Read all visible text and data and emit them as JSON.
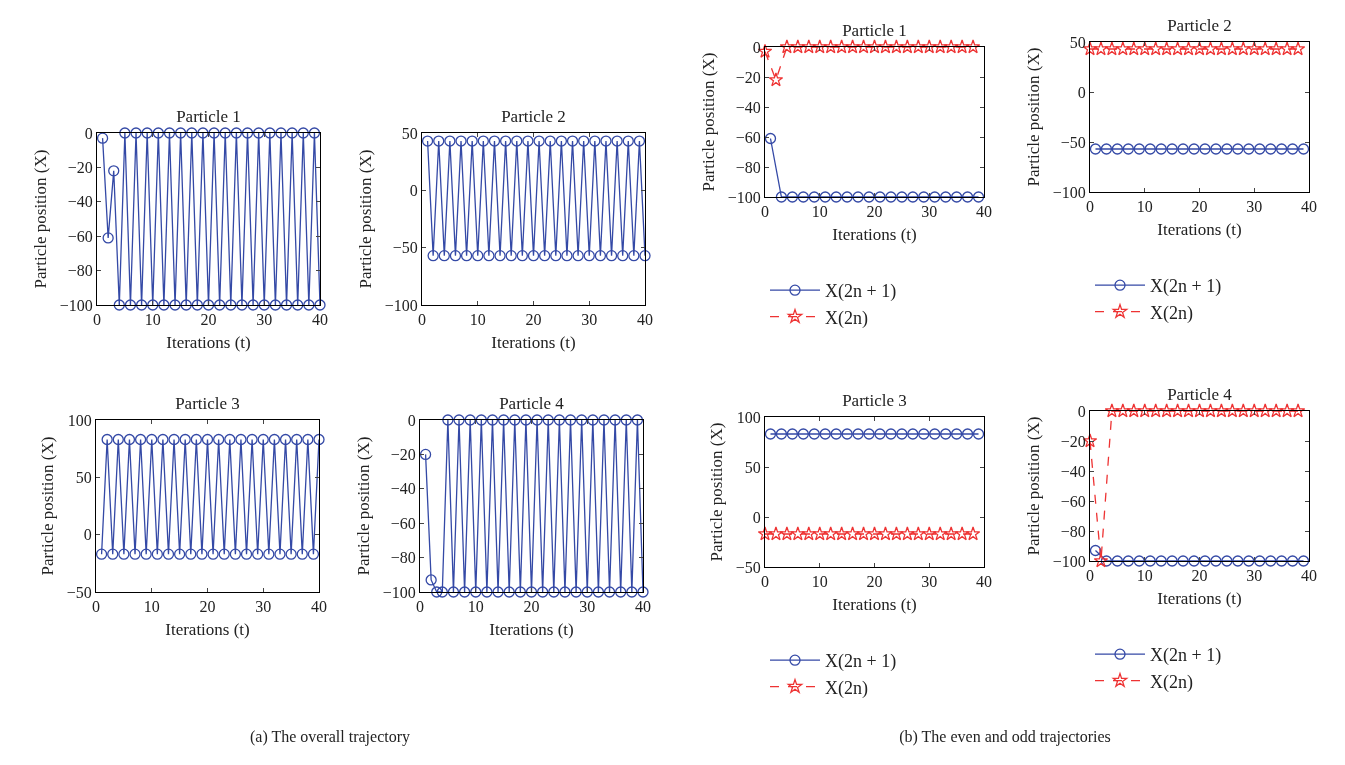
{
  "chart_data": [
    {
      "type": "line",
      "title": "Particle 1",
      "xlabel": "Iterations (t)",
      "ylabel": "Particle position (X)",
      "xlim": [
        0,
        40
      ],
      "xticks": [
        0,
        10,
        20,
        30,
        40
      ],
      "ylim": [
        -100,
        0
      ],
      "yticks": [
        -100,
        -80,
        -60,
        -40,
        -20,
        0
      ],
      "grid": false,
      "marker": "circle",
      "line_style": "solid",
      "annotations": [
        "(a)  The overall trajectory"
      ],
      "x": [
        1,
        2,
        3,
        4,
        5,
        6,
        7,
        8,
        9,
        10,
        11,
        12,
        13,
        14,
        15,
        16,
        17,
        18,
        19,
        20,
        21,
        22,
        23,
        24,
        25,
        26,
        27,
        28,
        29,
        30,
        31,
        32,
        33,
        34,
        35,
        36,
        37,
        38,
        39,
        40
      ],
      "series": [
        {
          "color": "#3449a6",
          "values": [
            -3,
            -61,
            -22,
            -100,
            0,
            -100,
            0,
            -100,
            0,
            -100,
            0,
            -100,
            0,
            -100,
            0,
            -100,
            0,
            -100,
            0,
            -100,
            0,
            -100,
            0,
            -100,
            0,
            -100,
            0,
            -100,
            0,
            -100,
            0,
            -100,
            0,
            -100,
            0,
            -100,
            0,
            -100,
            0,
            -100
          ]
        }
      ]
    },
    {
      "type": "line",
      "title": "Particle 2",
      "xlabel": "Iterations (t)",
      "ylabel": "Particle position (X)",
      "xlim": [
        0,
        40
      ],
      "xticks": [
        0,
        10,
        20,
        30,
        40
      ],
      "ylim": [
        -100,
        50
      ],
      "yticks": [
        -100,
        -50,
        0,
        50
      ],
      "grid": false,
      "marker": "circle",
      "line_style": "solid",
      "x": [
        1,
        2,
        3,
        4,
        5,
        6,
        7,
        8,
        9,
        10,
        11,
        12,
        13,
        14,
        15,
        16,
        17,
        18,
        19,
        20,
        21,
        22,
        23,
        24,
        25,
        26,
        27,
        28,
        29,
        30,
        31,
        32,
        33,
        34,
        35,
        36,
        37,
        38,
        39,
        40
      ],
      "series": [
        {
          "color": "#3449a6",
          "values": [
            43,
            -57,
            43,
            -57,
            43,
            -57,
            43,
            -57,
            43,
            -57,
            43,
            -57,
            43,
            -57,
            43,
            -57,
            43,
            -57,
            43,
            -57,
            43,
            -57,
            43,
            -57,
            43,
            -57,
            43,
            -57,
            43,
            -57,
            43,
            -57,
            43,
            -57,
            43,
            -57,
            43,
            -57,
            43,
            -57
          ]
        }
      ]
    },
    {
      "type": "line",
      "title": "Particle 3",
      "xlabel": "Iterations (t)",
      "ylabel": "Particle position (X)",
      "xlim": [
        0,
        40
      ],
      "xticks": [
        0,
        10,
        20,
        30,
        40
      ],
      "ylim": [
        -50,
        100
      ],
      "yticks": [
        -50,
        0,
        50,
        100
      ],
      "grid": false,
      "marker": "circle",
      "line_style": "solid",
      "x": [
        1,
        2,
        3,
        4,
        5,
        6,
        7,
        8,
        9,
        10,
        11,
        12,
        13,
        14,
        15,
        16,
        17,
        18,
        19,
        20,
        21,
        22,
        23,
        24,
        25,
        26,
        27,
        28,
        29,
        30,
        31,
        32,
        33,
        34,
        35,
        36,
        37,
        38,
        39,
        40
      ],
      "series": [
        {
          "color": "#3449a6",
          "values": [
            -17,
            83,
            -17,
            83,
            -17,
            83,
            -17,
            83,
            -17,
            83,
            -17,
            83,
            -17,
            83,
            -17,
            83,
            -17,
            83,
            -17,
            83,
            -17,
            83,
            -17,
            83,
            -17,
            83,
            -17,
            83,
            -17,
            83,
            -17,
            83,
            -17,
            83,
            -17,
            83,
            -17,
            83,
            -17,
            83
          ]
        }
      ]
    },
    {
      "type": "line",
      "title": "Particle 4",
      "xlabel": "Iterations (t)",
      "ylabel": "Particle position (X)",
      "xlim": [
        0,
        40
      ],
      "xticks": [
        0,
        10,
        20,
        30,
        40
      ],
      "ylim": [
        -100,
        0
      ],
      "yticks": [
        -100,
        -80,
        -60,
        -40,
        -20,
        0
      ],
      "grid": false,
      "marker": "circle",
      "line_style": "solid",
      "x": [
        1,
        2,
        3,
        4,
        5,
        6,
        7,
        8,
        9,
        10,
        11,
        12,
        13,
        14,
        15,
        16,
        17,
        18,
        19,
        20,
        21,
        22,
        23,
        24,
        25,
        26,
        27,
        28,
        29,
        30,
        31,
        32,
        33,
        34,
        35,
        36,
        37,
        38,
        39,
        40
      ],
      "series": [
        {
          "color": "#3449a6",
          "values": [
            -20,
            -93,
            -100,
            -100,
            0,
            -100,
            0,
            -100,
            0,
            -100,
            0,
            -100,
            0,
            -100,
            0,
            -100,
            0,
            -100,
            0,
            -100,
            0,
            -100,
            0,
            -100,
            0,
            -100,
            0,
            -100,
            0,
            -100,
            0,
            -100,
            0,
            -100,
            0,
            -100,
            0,
            -100,
            0,
            -100
          ]
        }
      ]
    },
    {
      "type": "line",
      "title": "Particle 1",
      "xlabel": "Iterations (t)",
      "ylabel": "Particle position (X)",
      "xlim": [
        0,
        40
      ],
      "xticks": [
        0,
        10,
        20,
        30,
        40
      ],
      "ylim": [
        -100,
        0
      ],
      "yticks": [
        -100,
        -80,
        -60,
        -40,
        -20,
        0
      ],
      "grid": false,
      "legend": "bottom",
      "annotations": [
        "(b)  The even and odd trajectories"
      ],
      "series": [
        {
          "name": "X(2n + 1)",
          "color": "#3449a6",
          "marker": "circle",
          "line_style": "solid",
          "x": [
            1,
            3,
            5,
            7,
            9,
            11,
            13,
            15,
            17,
            19,
            21,
            23,
            25,
            27,
            29,
            31,
            33,
            35,
            37,
            39
          ],
          "values": [
            -61,
            -100,
            -100,
            -100,
            -100,
            -100,
            -100,
            -100,
            -100,
            -100,
            -100,
            -100,
            -100,
            -100,
            -100,
            -100,
            -100,
            -100,
            -100,
            -100
          ]
        },
        {
          "name": "X(2n)",
          "color": "#ee3333",
          "marker": "star",
          "line_style": "dashed",
          "x": [
            0,
            2,
            4,
            6,
            8,
            10,
            12,
            14,
            16,
            18,
            20,
            22,
            24,
            26,
            28,
            30,
            32,
            34,
            36,
            38
          ],
          "values": [
            -3,
            -22,
            0,
            0,
            0,
            0,
            0,
            0,
            0,
            0,
            0,
            0,
            0,
            0,
            0,
            0,
            0,
            0,
            0,
            0
          ]
        }
      ]
    },
    {
      "type": "line",
      "title": "Particle 2",
      "xlabel": "Iterations (t)",
      "ylabel": "Particle position (X)",
      "xlim": [
        0,
        40
      ],
      "xticks": [
        0,
        10,
        20,
        30,
        40
      ],
      "ylim": [
        -100,
        50
      ],
      "yticks": [
        -100,
        -50,
        0,
        50
      ],
      "grid": false,
      "legend": "bottom",
      "series": [
        {
          "name": "X(2n + 1)",
          "color": "#3449a6",
          "marker": "circle",
          "line_style": "solid",
          "x": [
            1,
            3,
            5,
            7,
            9,
            11,
            13,
            15,
            17,
            19,
            21,
            23,
            25,
            27,
            29,
            31,
            33,
            35,
            37,
            39
          ],
          "values": [
            -57,
            -57,
            -57,
            -57,
            -57,
            -57,
            -57,
            -57,
            -57,
            -57,
            -57,
            -57,
            -57,
            -57,
            -57,
            -57,
            -57,
            -57,
            -57,
            -57
          ]
        },
        {
          "name": "X(2n)",
          "color": "#ee3333",
          "marker": "star",
          "line_style": "dashed",
          "x": [
            0,
            2,
            4,
            6,
            8,
            10,
            12,
            14,
            16,
            18,
            20,
            22,
            24,
            26,
            28,
            30,
            32,
            34,
            36,
            38
          ],
          "values": [
            43,
            43,
            43,
            43,
            43,
            43,
            43,
            43,
            43,
            43,
            43,
            43,
            43,
            43,
            43,
            43,
            43,
            43,
            43,
            43
          ]
        }
      ]
    },
    {
      "type": "line",
      "title": "Particle 3",
      "xlabel": "Iterations (t)",
      "ylabel": "Particle position (X)",
      "xlim": [
        0,
        40
      ],
      "xticks": [
        0,
        10,
        20,
        30,
        40
      ],
      "ylim": [
        -50,
        100
      ],
      "yticks": [
        -50,
        0,
        50,
        100
      ],
      "grid": false,
      "legend": "bottom",
      "series": [
        {
          "name": "X(2n + 1)",
          "color": "#3449a6",
          "marker": "circle",
          "line_style": "solid",
          "x": [
            1,
            3,
            5,
            7,
            9,
            11,
            13,
            15,
            17,
            19,
            21,
            23,
            25,
            27,
            29,
            31,
            33,
            35,
            37,
            39
          ],
          "values": [
            83,
            83,
            83,
            83,
            83,
            83,
            83,
            83,
            83,
            83,
            83,
            83,
            83,
            83,
            83,
            83,
            83,
            83,
            83,
            83
          ]
        },
        {
          "name": "X(2n)",
          "color": "#ee3333",
          "marker": "star",
          "line_style": "dashed",
          "x": [
            0,
            2,
            4,
            6,
            8,
            10,
            12,
            14,
            16,
            18,
            20,
            22,
            24,
            26,
            28,
            30,
            32,
            34,
            36,
            38
          ],
          "values": [
            -17,
            -17,
            -17,
            -17,
            -17,
            -17,
            -17,
            -17,
            -17,
            -17,
            -17,
            -17,
            -17,
            -17,
            -17,
            -17,
            -17,
            -17,
            -17,
            -17
          ]
        }
      ]
    },
    {
      "type": "line",
      "title": "Particle 4",
      "xlabel": "Iterations (t)",
      "ylabel": "Particle position (X)",
      "xlim": [
        0,
        40
      ],
      "xticks": [
        0,
        10,
        20,
        30,
        40
      ],
      "ylim": [
        -100,
        0
      ],
      "yticks": [
        -100,
        -80,
        -60,
        -40,
        -20,
        0
      ],
      "grid": false,
      "legend": "bottom",
      "series": [
        {
          "name": "X(2n + 1)",
          "color": "#3449a6",
          "marker": "circle",
          "line_style": "solid",
          "x": [
            1,
            3,
            5,
            7,
            9,
            11,
            13,
            15,
            17,
            19,
            21,
            23,
            25,
            27,
            29,
            31,
            33,
            35,
            37,
            39
          ],
          "values": [
            -93,
            -100,
            -100,
            -100,
            -100,
            -100,
            -100,
            -100,
            -100,
            -100,
            -100,
            -100,
            -100,
            -100,
            -100,
            -100,
            -100,
            -100,
            -100,
            -100
          ]
        },
        {
          "name": "X(2n)",
          "color": "#ee3333",
          "marker": "star",
          "line_style": "dashed",
          "x": [
            0,
            2,
            4,
            6,
            8,
            10,
            12,
            14,
            16,
            18,
            20,
            22,
            24,
            26,
            28,
            30,
            32,
            34,
            36,
            38
          ],
          "values": [
            -20,
            -100,
            0,
            0,
            0,
            0,
            0,
            0,
            0,
            0,
            0,
            0,
            0,
            0,
            0,
            0,
            0,
            0,
            0,
            0
          ]
        }
      ]
    }
  ]
}
